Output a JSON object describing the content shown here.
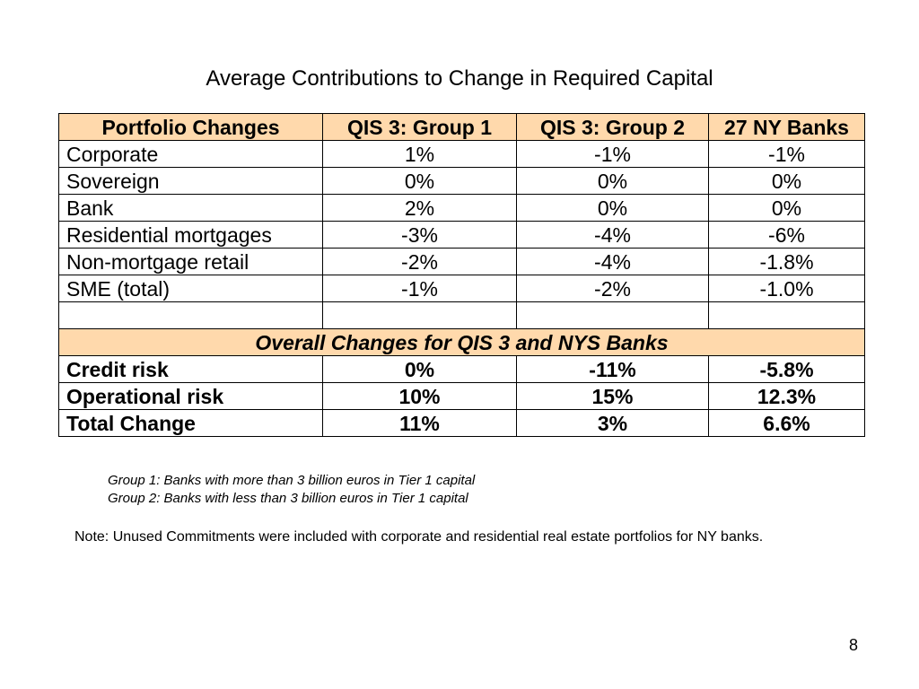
{
  "slide": {
    "title": "Average Contributions to Change in Required Capital",
    "page_number": "8"
  },
  "table": {
    "headers": [
      "Portfolio Changes",
      "QIS 3: Group 1",
      "QIS 3: Group 2",
      "27 NY Banks"
    ],
    "portfolio_rows": [
      [
        "Corporate",
        "1%",
        "-1%",
        "-1%"
      ],
      [
        "Sovereign",
        "0%",
        "0%",
        "0%"
      ],
      [
        "Bank",
        "2%",
        "0%",
        "0%"
      ],
      [
        "Residential mortgages",
        "-3%",
        "-4%",
        "-6%"
      ],
      [
        "Non-mortgage retail",
        "-2%",
        "-4%",
        "-1.8%"
      ],
      [
        "SME (total)",
        "-1%",
        "-2%",
        "-1.0%"
      ]
    ],
    "section_heading": "Overall Changes for QIS 3 and NYS Banks",
    "overall_rows": [
      [
        "Credit risk",
        "0%",
        "-11%",
        "-5.8%"
      ],
      [
        "Operational risk",
        "10%",
        "15%",
        "12.3%"
      ],
      [
        "Total Change",
        "11%",
        "3%",
        "6.6%"
      ]
    ]
  },
  "footnotes": {
    "group1": "Group 1: Banks with more than 3 billion euros in Tier 1 capital",
    "group2": "Group 2: Banks with less than 3 billion euros in Tier 1 capital"
  },
  "note": "Note: Unused Commitments were included with corporate and residential real estate portfolios for NY banks."
}
